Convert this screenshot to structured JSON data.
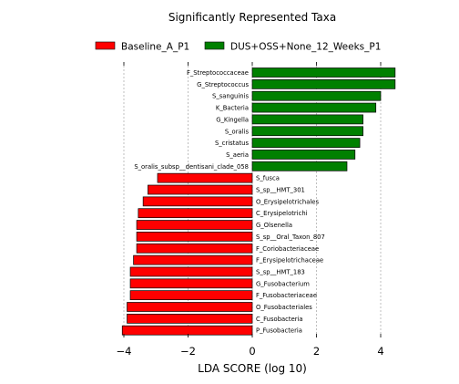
{
  "chart_data": {
    "type": "bar",
    "orientation": "horizontal",
    "title": "Significantly Represented Taxa",
    "xlabel": "LDA SCORE (log 10)",
    "ylabel": "",
    "xlim": [
      -4.2,
      4.5
    ],
    "xticks": [
      -4,
      -2,
      0,
      2,
      4
    ],
    "xtick_labels": [
      "−4",
      "−2",
      "0",
      "2",
      "4"
    ],
    "grid": "vertical-dashed",
    "legend_position": "top",
    "series": [
      {
        "name": "Baseline_A_P1",
        "color": "#ff0000"
      },
      {
        "name": "DUS+OSS+None_12_Weeks_P1",
        "color": "#008000"
      }
    ],
    "bars": [
      {
        "label": "F_Streptococcaceae",
        "value": 4.45,
        "series": 1
      },
      {
        "label": "G_Streptococcus",
        "value": 4.45,
        "series": 1
      },
      {
        "label": "S_sanguinis",
        "value": 4.0,
        "series": 1
      },
      {
        "label": "K_Bacteria",
        "value": 3.85,
        "series": 1
      },
      {
        "label": "G_Kingella",
        "value": 3.45,
        "series": 1
      },
      {
        "label": "S_oralis",
        "value": 3.45,
        "series": 1
      },
      {
        "label": "S_cristatus",
        "value": 3.35,
        "series": 1
      },
      {
        "label": "S_aeria",
        "value": 3.2,
        "series": 1
      },
      {
        "label": "S_oralis_subsp__dentisani_clade_058",
        "value": 2.95,
        "series": 1
      },
      {
        "label": "S_fusca",
        "value": -2.95,
        "series": 0
      },
      {
        "label": "S_sp__HMT_301",
        "value": -3.25,
        "series": 0
      },
      {
        "label": "O_Erysipelotrichales",
        "value": -3.4,
        "series": 0
      },
      {
        "label": "C_Erysipelotrichi",
        "value": -3.55,
        "series": 0
      },
      {
        "label": "G_Olsenella",
        "value": -3.6,
        "series": 0
      },
      {
        "label": "S_sp__Oral_Taxon_807",
        "value": -3.6,
        "series": 0
      },
      {
        "label": "F_Coriobacteriaceae",
        "value": -3.6,
        "series": 0
      },
      {
        "label": "F_Erysipelotrichaceae",
        "value": -3.7,
        "series": 0
      },
      {
        "label": "S_sp__HMT_183",
        "value": -3.8,
        "series": 0
      },
      {
        "label": "G_Fusobacterium",
        "value": -3.8,
        "series": 0
      },
      {
        "label": "F_Fusobacteriaceae",
        "value": -3.8,
        "series": 0
      },
      {
        "label": "O_Fusobacteriales",
        "value": -3.9,
        "series": 0
      },
      {
        "label": "C_Fusobacteria",
        "value": -3.9,
        "series": 0
      },
      {
        "label": "P_Fusobacteria",
        "value": -4.05,
        "series": 0
      }
    ]
  }
}
